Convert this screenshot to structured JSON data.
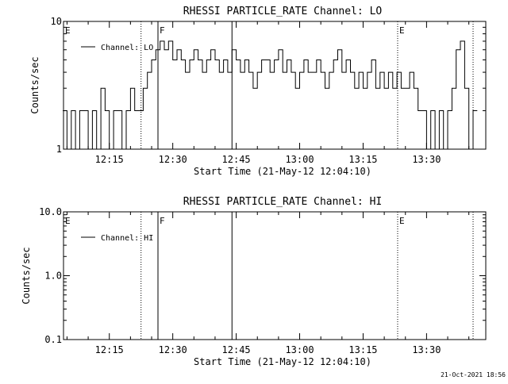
{
  "footer_timestamp": "21-Oct-2021 18:56",
  "chart_data": [
    {
      "type": "line",
      "title": "RHESSI PARTICLE_RATE Channel: LO",
      "xlabel": "Start Time (21-May-12 12:04:10)",
      "ylabel": "Counts/sec",
      "y_scale": "log",
      "ylim": [
        1,
        10
      ],
      "y_ticks": [
        {
          "value": 1,
          "label": "1"
        },
        {
          "value": 10,
          "label": "10"
        }
      ],
      "xlim": [
        "12:04:10",
        "13:44:00"
      ],
      "x_ticks": [
        "12:15",
        "12:30",
        "12:45",
        "13:00",
        "13:15",
        "13:30"
      ],
      "grid": false,
      "legend_position": "top-left",
      "series": [
        {
          "name": "Channel: LO",
          "x": [
            "12:04",
            "12:05",
            "12:06",
            "12:07",
            "12:08",
            "12:09",
            "12:10",
            "12:11",
            "12:12",
            "12:13",
            "12:14",
            "12:15",
            "12:16",
            "12:17",
            "12:18",
            "12:19",
            "12:20",
            "12:21",
            "12:22",
            "12:23",
            "12:24",
            "12:25",
            "12:26",
            "12:27",
            "12:28",
            "12:29",
            "12:30",
            "12:31",
            "12:32",
            "12:33",
            "12:34",
            "12:35",
            "12:36",
            "12:37",
            "12:38",
            "12:39",
            "12:40",
            "12:41",
            "12:42",
            "12:43",
            "12:44",
            "12:45",
            "12:46",
            "12:47",
            "12:48",
            "12:49",
            "12:50",
            "12:51",
            "12:52",
            "12:53",
            "12:54",
            "12:55",
            "12:56",
            "12:57",
            "12:58",
            "12:59",
            "13:00",
            "13:01",
            "13:02",
            "13:03",
            "13:04",
            "13:05",
            "13:06",
            "13:07",
            "13:08",
            "13:09",
            "13:10",
            "13:11",
            "13:12",
            "13:13",
            "13:14",
            "13:15",
            "13:16",
            "13:17",
            "13:18",
            "13:19",
            "13:20",
            "13:21",
            "13:22",
            "13:23",
            "13:24",
            "13:25",
            "13:26",
            "13:27",
            "13:28",
            "13:29",
            "13:30",
            "13:31",
            "13:32",
            "13:33",
            "13:34",
            "13:35",
            "13:36",
            "13:37",
            "13:38",
            "13:39",
            "13:40",
            "13:41"
          ],
          "y": [
            2,
            1,
            2,
            1,
            2,
            2,
            1,
            2,
            1,
            3,
            2,
            1,
            2,
            2,
            1,
            2,
            3,
            2,
            2,
            3,
            4,
            5,
            6,
            7,
            6,
            7,
            5,
            6,
            5,
            4,
            5,
            6,
            5,
            4,
            5,
            6,
            5,
            4,
            5,
            4,
            6,
            5,
            4,
            5,
            4,
            3,
            4,
            5,
            5,
            4,
            5,
            6,
            4,
            5,
            4,
            3,
            4,
            5,
            4,
            4,
            5,
            4,
            3,
            4,
            5,
            6,
            4,
            5,
            4,
            3,
            4,
            3,
            4,
            5,
            3,
            4,
            3,
            4,
            3,
            4,
            3,
            3,
            4,
            3,
            2,
            2,
            1,
            2,
            1,
            2,
            1,
            2,
            3,
            6,
            7,
            3,
            1,
            2
          ]
        }
      ],
      "event_markers": [
        {
          "label": "E",
          "time": "12:04:10",
          "style": "dotted"
        },
        {
          "label": "",
          "time": "12:22:30",
          "style": "dotted"
        },
        {
          "label": "F",
          "time": "12:26:30",
          "style": "solid"
        },
        {
          "label": "",
          "time": "12:44:00",
          "style": "solid"
        },
        {
          "label": "E",
          "time": "13:23:10",
          "style": "dotted"
        },
        {
          "label": "",
          "time": "13:41:00",
          "style": "dotted"
        }
      ]
    },
    {
      "type": "line",
      "title": "RHESSI PARTICLE_RATE Channel: HI",
      "xlabel": "Start Time (21-May-12 12:04:10)",
      "ylabel": "Counts/sec",
      "y_scale": "log",
      "ylim": [
        0.1,
        10
      ],
      "y_ticks": [
        {
          "value": 10,
          "label": "10.0"
        },
        {
          "value": 1,
          "label": "1.0"
        },
        {
          "value": 0.1,
          "label": "0.1"
        }
      ],
      "xlim": [
        "12:04:10",
        "13:44:00"
      ],
      "x_ticks": [
        "12:15",
        "12:30",
        "12:45",
        "13:00",
        "13:15",
        "13:30"
      ],
      "grid": false,
      "legend_position": "top-left",
      "series": [
        {
          "name": "Channel: HI",
          "x": [],
          "y": []
        }
      ],
      "event_markers": [
        {
          "label": "E",
          "time": "12:04:10",
          "style": "dotted"
        },
        {
          "label": "",
          "time": "12:22:30",
          "style": "dotted"
        },
        {
          "label": "F",
          "time": "12:26:30",
          "style": "solid"
        },
        {
          "label": "",
          "time": "12:44:00",
          "style": "solid"
        },
        {
          "label": "E",
          "time": "13:23:10",
          "style": "dotted"
        },
        {
          "label": "",
          "time": "13:41:00",
          "style": "dotted"
        }
      ]
    }
  ]
}
